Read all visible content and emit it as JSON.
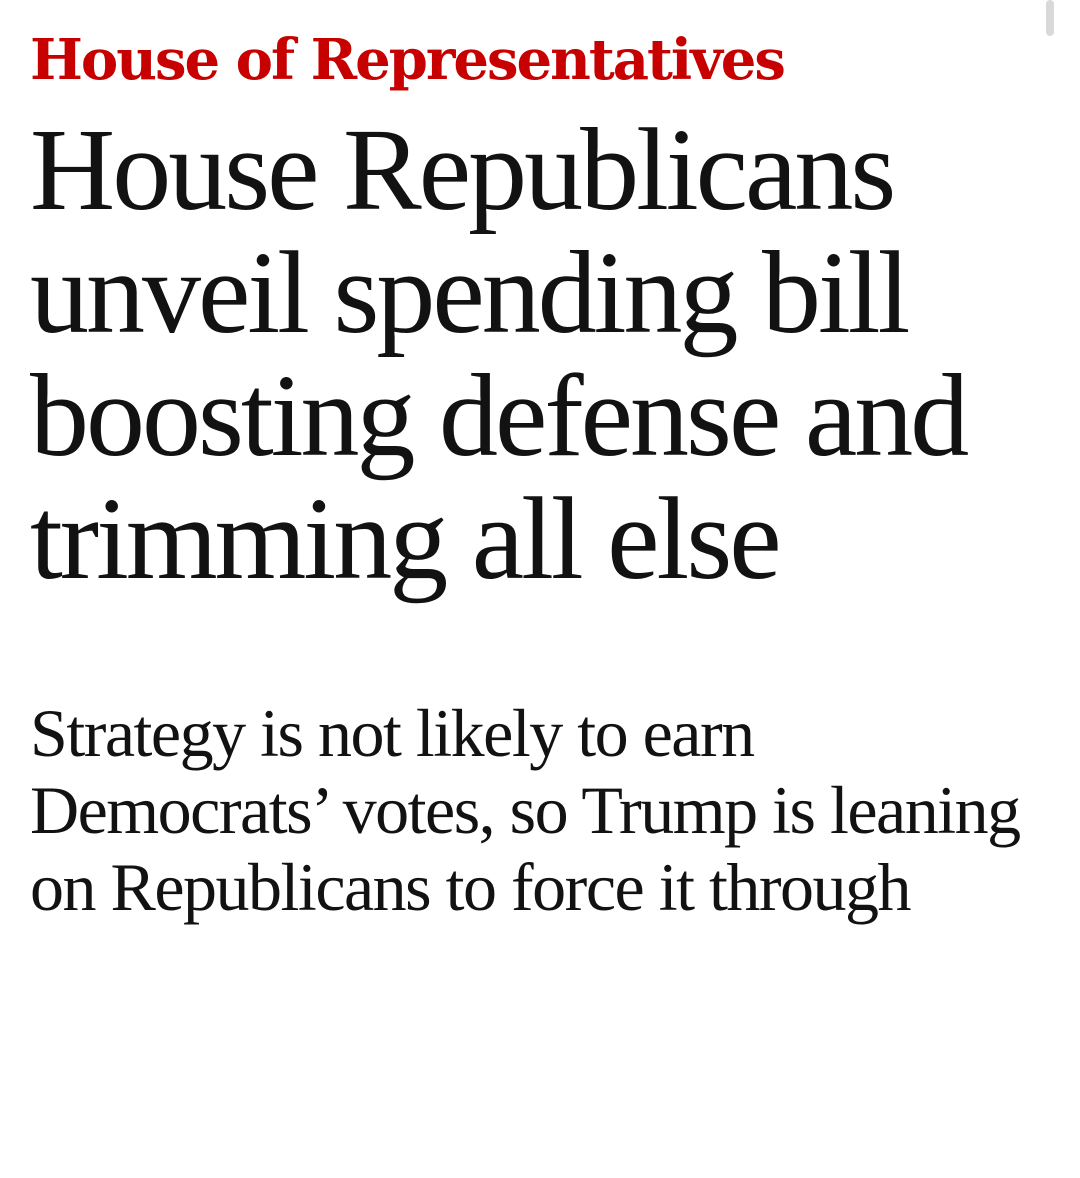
{
  "article": {
    "kicker": "House of Representatives",
    "headline": "House Republicans unveil spending bill boosting defense and trimming all else",
    "standfirst": "Strategy is not likely to earn Democrats’ votes, so Trump is leaning on Republicans to force it through"
  },
  "colors": {
    "kicker": "#c70000",
    "text": "#121212",
    "background": "#ffffff"
  }
}
